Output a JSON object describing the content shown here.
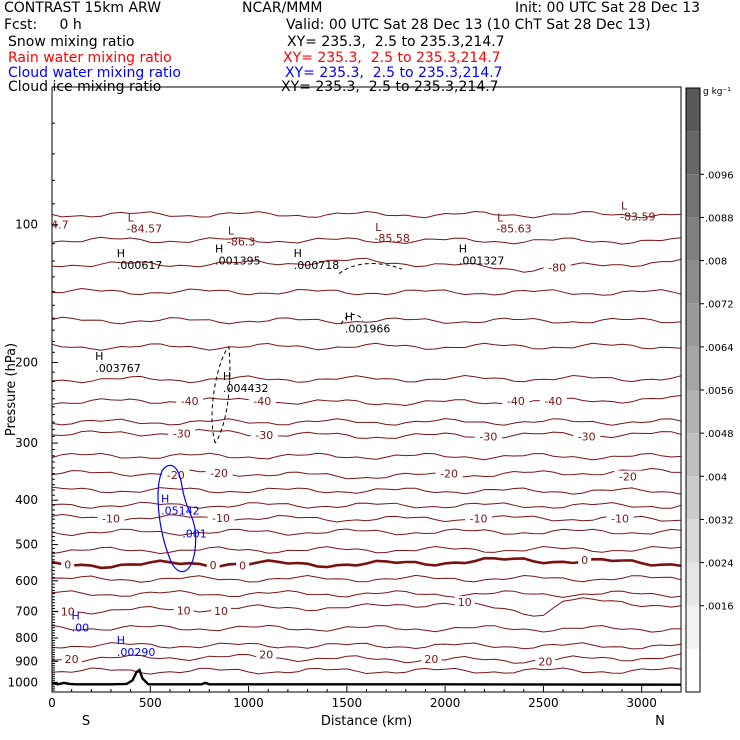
{
  "header": {
    "title": "CONTRAST 15km ARW",
    "org": "NCAR/MMM",
    "init": "Init: 00 UTC Sat 28 Dec 13",
    "fcst": "Fcst:     0 h",
    "valid": "Valid: 00 UTC Sat 28 Dec 13 (10 ChT Sat 28 Dec 13)"
  },
  "fields": [
    {
      "name": "Snow mixing ratio",
      "xy": "XY= 235.3,  2.5 to 235.3,214.7",
      "color": "#000000"
    },
    {
      "name": "Rain water mixing ratio",
      "xy": "XY= 235.3,  2.5 to 235.3,214.7",
      "color": "#ff0000"
    },
    {
      "name": "Cloud water mixing ratio",
      "xy": "XY= 235.3,  2.5 to 235.3,214.7",
      "color": "#0000ff"
    },
    {
      "name": "Cloud ice mixing ratio",
      "xy": "XY= 235.3,  2.5 to 235.3,214.7",
      "color": "#000000"
    }
  ],
  "chart_data": {
    "type": "contour cross-section",
    "xlabel": "Distance (km)",
    "ylabel": "Pressure (hPa)",
    "x_ticks": [
      0,
      500,
      1000,
      1500,
      2000,
      2500,
      3000
    ],
    "y_ticks": [
      100,
      200,
      300,
      400,
      500,
      600,
      700,
      800,
      900,
      1000
    ],
    "xlim": [
      0,
      3200
    ],
    "ylim": [
      1050,
      50
    ],
    "y_scale": "log",
    "end_labels": {
      "left": "S",
      "right": "N"
    },
    "colorbar": {
      "unit": "g kg⁻¹",
      "ticks": [
        ".0096",
        ".0088",
        ".008",
        ".0072",
        ".0064",
        ".0056",
        ".0048",
        ".004",
        ".0032",
        ".0024",
        ".0016"
      ],
      "grays": [
        "#ffffff",
        "#f2f2f2",
        "#e6e6e6",
        "#d9d9d9",
        "#cccccc",
        "#bfbfbf",
        "#b3b3b3",
        "#a6a6a6",
        "#999999",
        "#8c8c8c",
        "#808080",
        "#737373",
        "#666666",
        "#595959"
      ]
    },
    "temperature_contours": {
      "color": "#7a1414",
      "zero_color": "#7a1010",
      "levels": [
        {
          "label": "-80",
          "x": [
            0,
            800,
            1600,
            2400,
            3200
          ],
          "p": [
            122,
            122,
            120,
            125,
            120
          ],
          "label_x": [
            2570
          ],
          "label_p": [
            124
          ]
        },
        {
          "label": "-40",
          "x": [
            0,
            800,
            1600,
            2400,
            3200
          ],
          "p": [
            244,
            242,
            245,
            244,
            240
          ],
          "label_x": [
            700,
            1070,
            2360,
            2550
          ],
          "label_p": [
            243,
            243,
            243,
            243
          ]
        },
        {
          "label": "-30",
          "x": [
            0,
            800,
            1600,
            2400,
            3200
          ],
          "p": [
            287,
            284,
            290,
            288,
            287
          ],
          "label_x": [
            660,
            1080,
            2220,
            2720
          ],
          "label_p": [
            286,
            288,
            290,
            290
          ]
        },
        {
          "label": "-20",
          "x": [
            0,
            800,
            1600,
            2400,
            3200
          ],
          "p": [
            350,
            348,
            355,
            350,
            345
          ],
          "label_x": [
            630,
            850,
            2020,
            2930
          ],
          "label_p": [
            352,
            349,
            350,
            355
          ]
        },
        {
          "label": "-10",
          "x": [
            0,
            800,
            1600,
            2400,
            3200
          ],
          "p": [
            437,
            437,
            440,
            438,
            440
          ],
          "label_x": [
            300,
            860,
            2170,
            2890
          ],
          "label_p": [
            438,
            437,
            438,
            438
          ]
        },
        {
          "label": "0",
          "x": [
            0,
            800,
            1600,
            2400,
            3200
          ],
          "p": [
            555,
            550,
            552,
            540,
            550
          ],
          "label_x": [
            80,
            820,
            970,
            2710
          ],
          "label_p": [
            553,
            554,
            555,
            540
          ]
        },
        {
          "label": "10",
          "x": [
            0,
            800,
            1600,
            2000,
            2500,
            2600,
            3200
          ],
          "p": [
            700,
            690,
            685,
            670,
            710,
            660,
            680
          ],
          "label_x": [
            80,
            670,
            860,
            2100
          ],
          "label_p": [
            700,
            697,
            698,
            668
          ]
        },
        {
          "label": "20",
          "x": [
            0,
            800,
            1600,
            2400,
            3200
          ],
          "p": [
            890,
            880,
            890,
            895,
            880
          ],
          "label_x": [
            100,
            1090,
            1930,
            2510
          ],
          "label_p": [
            890,
            870,
            890,
            900
          ]
        }
      ]
    },
    "extra_isolines": {
      "color": "#7a1414",
      "p": [
        95,
        108,
        140,
        162,
        185,
        218,
        270,
        320,
        380,
        410,
        470,
        515,
        595,
        640,
        760,
        830,
        945
      ]
    },
    "cloud_water_contours": {
      "color": "#0000ff",
      "labels": [
        {
          "text": ".001",
          "x": 725,
          "p": 483
        }
      ],
      "marks": [
        {
          "type": "H",
          "value": ".05142",
          "x": 555,
          "p": 430
        },
        {
          "type": "H",
          "value": ".00",
          "x": 100,
          "p": 775
        },
        {
          "type": "H",
          "value": ".00290",
          "x": 330,
          "p": 875
        }
      ]
    },
    "ice_contours": {
      "color": "#000000",
      "marks": [
        {
          "type": "H",
          "value": ".000617",
          "x": 330,
          "p": 125
        },
        {
          "type": "H",
          "value": ".001395",
          "x": 830,
          "p": 122
        },
        {
          "type": "H",
          "value": ".000718",
          "x": 1230,
          "p": 125
        },
        {
          "type": "H",
          "value": ".001327",
          "x": 2070,
          "p": 122
        },
        {
          "type": "H",
          "value": ".001966",
          "x": 1490,
          "p": 172
        },
        {
          "type": "H",
          "value": ".003767",
          "x": 220,
          "p": 210
        },
        {
          "type": "H",
          "value": ".004432",
          "x": 870,
          "p": 232
        }
      ]
    },
    "temperature_extrema": [
      {
        "type": "L",
        "value": "-84.57",
        "x": 380,
        "p": 104
      },
      {
        "type": "L",
        "value": "-86.3",
        "x": 890,
        "p": 111
      },
      {
        "type": "L",
        "value": "-85.58",
        "x": 1640,
        "p": 109
      },
      {
        "type": "L",
        "value": "-85.63",
        "x": 2260,
        "p": 104
      },
      {
        "type": "L",
        "value": "-83.59",
        "x": 2890,
        "p": 98
      }
    ],
    "edge_labels": [
      {
        "text": "4.7",
        "x": 40,
        "p": 102
      }
    ],
    "terrain": {
      "x": [
        0,
        30,
        60,
        90,
        120,
        200,
        300,
        380,
        410,
        430,
        445,
        460,
        490,
        600,
        760,
        780,
        800,
        1000,
        2000,
        3200
      ],
      "p": [
        1002,
        1010,
        1003,
        1008,
        1010,
        1010,
        1010,
        1008,
        990,
        950,
        940,
        980,
        1010,
        1010,
        1010,
        1003,
        1010,
        1010,
        1010,
        1012
      ]
    }
  }
}
